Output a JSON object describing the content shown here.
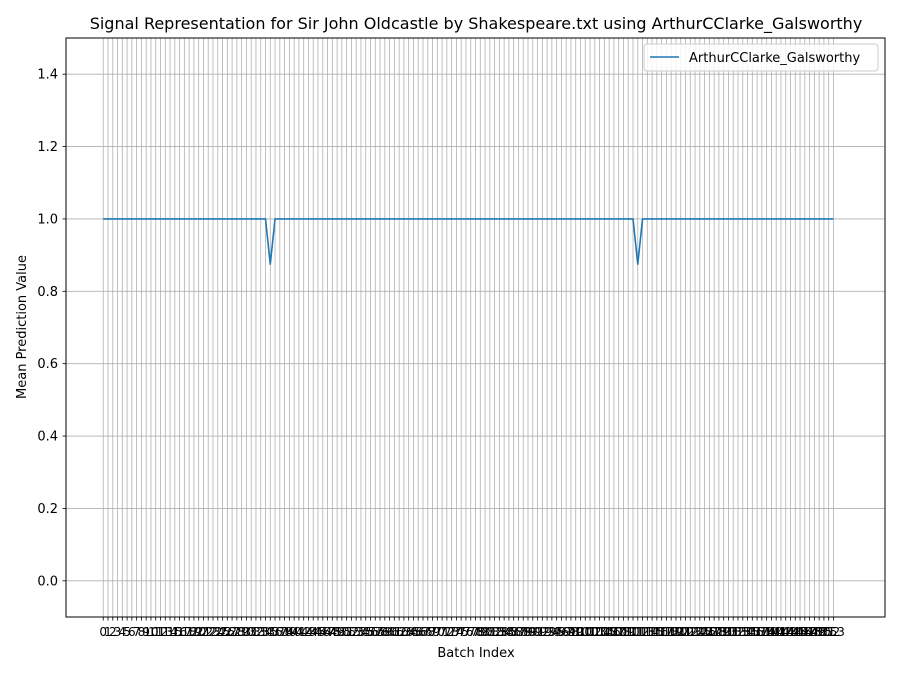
{
  "chart_data": {
    "type": "line",
    "title": "Signal Representation for Sir John Oldcastle by Shakespeare.txt using ArthurCClarke_Galsworthy",
    "xlabel": "Batch Index",
    "ylabel": "Mean Prediction Value",
    "xlim": [
      -7.8,
      163.8
    ],
    "ylim": [
      -0.1,
      1.5
    ],
    "yticks": [
      0.0,
      0.2,
      0.4,
      0.6,
      0.8,
      1.0,
      1.2,
      1.4
    ],
    "xticks_first": 0,
    "xticks_last": 153,
    "grid": true,
    "legend_position": "top-right",
    "series": [
      {
        "name": "ArthurCClarke_Galsworthy",
        "color": "#1f77b4",
        "x_start": 0,
        "x_end": 153,
        "baseline": 1.0,
        "dips": [
          {
            "x": 35,
            "y": 0.875
          },
          {
            "x": 112,
            "y": 0.875
          }
        ]
      }
    ]
  }
}
